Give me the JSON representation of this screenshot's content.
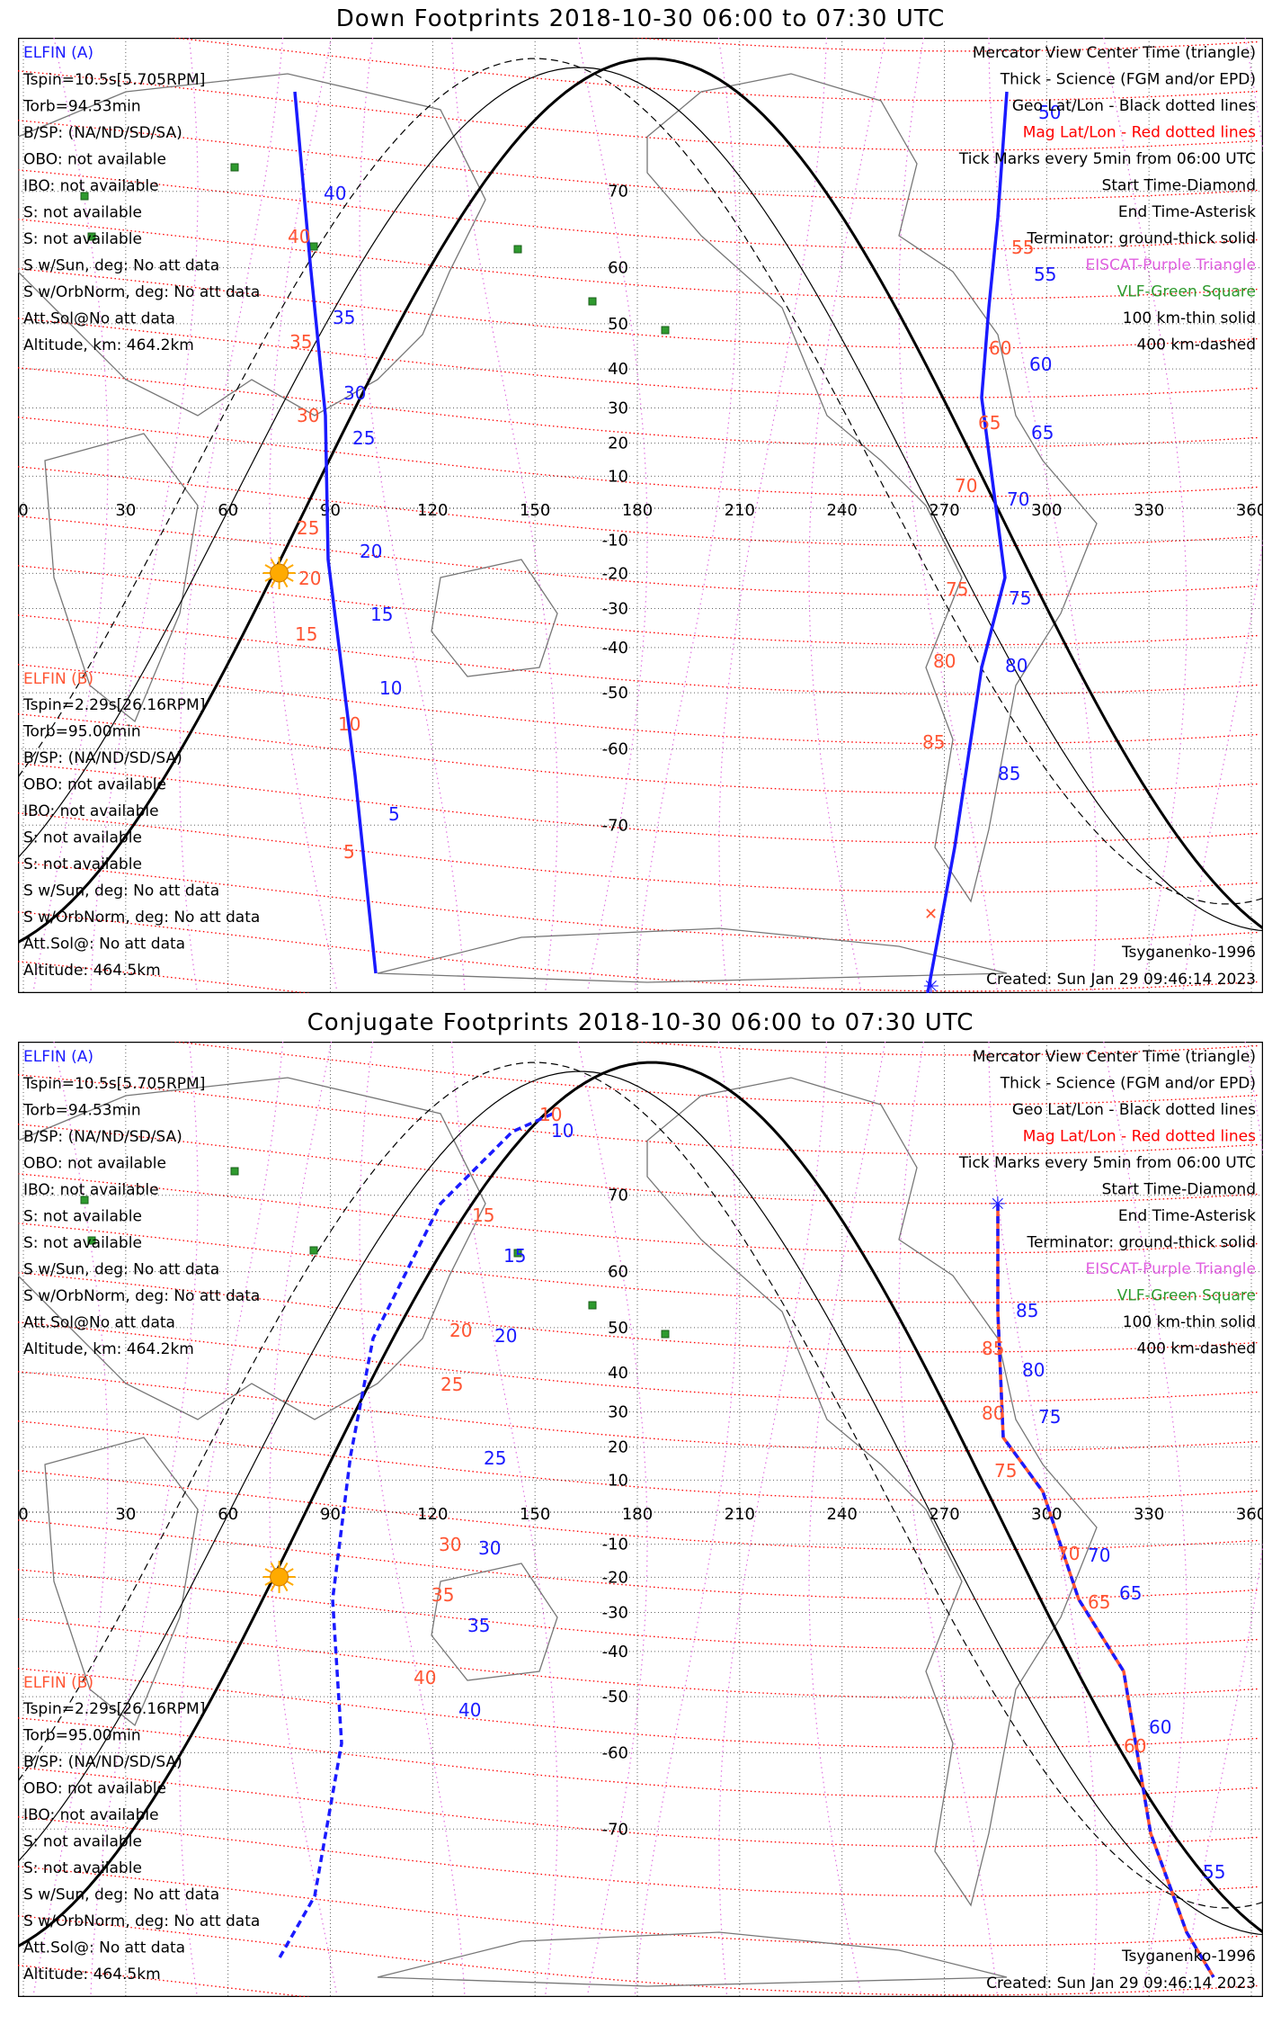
{
  "panels": [
    {
      "id": "down",
      "title": "Down Footprints 2018-10-30 06:00 to 07:30 UTC",
      "elfin_a": {
        "header": "ELFIN (A)",
        "lines": [
          "Tspin=10.5s[5.705RPM]",
          "Torb=94.53min",
          "B/SP: (NA/ND/SD/SA)",
          "OBO: not available",
          "IBO: not available",
          "S: not available",
          "S: not available",
          "S w/Sun, deg: No att data",
          "S w/OrbNorm, deg: No att data",
          "Att.Sol@No att data",
          "Altitude, km: 464.2km"
        ]
      },
      "elfin_b": {
        "header": "ELFIN (B)",
        "lines": [
          "Tspin=2.29s[26.16RPM]",
          "Torb=95.00min",
          "B/SP: (NA/ND/SD/SA)",
          "OBO: not available",
          "IBO: not available",
          "S: not available",
          "S: not available",
          "S w/Sun, deg: No att data",
          "S w/OrbNorm, deg: No att data",
          "Att.Sol@: No att data",
          "Altitude: 464.5km"
        ]
      },
      "legend": [
        {
          "text": "Mercator View Center Time (triangle)",
          "color": "#000000"
        },
        {
          "text": "Thick - Science (FGM and/or EPD)",
          "color": "#000000"
        },
        {
          "text": "Geo Lat/Lon - Black dotted lines",
          "color": "#000000"
        },
        {
          "text": "Mag Lat/Lon - Red dotted lines",
          "color": "#ff0000"
        },
        {
          "text": "Tick Marks every 5min from 06:00 UTC",
          "color": "#000000"
        },
        {
          "text": "Start Time-Diamond",
          "color": "#000000"
        },
        {
          "text": "End Time-Asterisk",
          "color": "#000000"
        },
        {
          "text": "Terminator: ground-thick solid",
          "color": "#000000"
        },
        {
          "text": "EISCAT-Purple Triangle",
          "color": "#e060e0"
        },
        {
          "text": "VLF-Green Square",
          "color": "#2e9a2e"
        },
        {
          "text": "100 km-thin solid",
          "color": "#000000"
        },
        {
          "text": "400 km-dashed",
          "color": "#000000"
        }
      ],
      "model": "Tsyganenko-1996",
      "created": "Created: Sun Jan 29 09:46:14 2023"
    },
    {
      "id": "conjugate",
      "title": "Conjugate Footprints 2018-10-30 06:00 to 07:30 UTC",
      "elfin_a": {
        "header": "ELFIN (A)",
        "lines": [
          "Tspin=10.5s[5.705RPM]",
          "Torb=94.53min",
          "B/SP: (NA/ND/SD/SA)",
          "OBO: not available",
          "IBO: not available",
          "S: not available",
          "S: not available",
          "S w/Sun, deg: No att data",
          "S w/OrbNorm, deg: No att data",
          "Att.Sol@No att data",
          "Altitude, km: 464.2km"
        ]
      },
      "elfin_b": {
        "header": "ELFIN (B)",
        "lines": [
          "Tspin=2.29s[26.16RPM]",
          "Torb=95.00min",
          "B/SP: (NA/ND/SD/SA)",
          "OBO: not available",
          "IBO: not available",
          "S: not available",
          "S: not available",
          "S w/Sun, deg: No att data",
          "S w/OrbNorm, deg: No att data",
          "Att.Sol@: No att data",
          "Altitude: 464.5km"
        ]
      },
      "legend": [
        {
          "text": "Mercator View Center Time (triangle)",
          "color": "#000000"
        },
        {
          "text": "Thick - Science (FGM and/or EPD)",
          "color": "#000000"
        },
        {
          "text": "Geo Lat/Lon - Black dotted lines",
          "color": "#000000"
        },
        {
          "text": "Mag Lat/Lon - Red dotted lines",
          "color": "#ff0000"
        },
        {
          "text": "Tick Marks every 5min from 06:00 UTC",
          "color": "#000000"
        },
        {
          "text": "Start Time-Diamond",
          "color": "#000000"
        },
        {
          "text": "End Time-Asterisk",
          "color": "#000000"
        },
        {
          "text": "Terminator: ground-thick solid",
          "color": "#000000"
        },
        {
          "text": "EISCAT-Purple Triangle",
          "color": "#e060e0"
        },
        {
          "text": "VLF-Green Square",
          "color": "#2e9a2e"
        },
        {
          "text": "100 km-thin solid",
          "color": "#000000"
        },
        {
          "text": "400 km-dashed",
          "color": "#000000"
        }
      ],
      "model": "Tsyganenko-1996",
      "created": "Created: Sun Jan 29 09:46:14 2023"
    }
  ],
  "axes": {
    "lon_labels": [
      "0",
      "30",
      "60",
      "90",
      "120",
      "150",
      "180",
      "210",
      "240",
      "270",
      "300",
      "330",
      "360"
    ],
    "lat_labels": [
      "70",
      "60",
      "50",
      "40",
      "30",
      "20",
      "10",
      "-10",
      "-20",
      "-30",
      "-40",
      "-50",
      "-60",
      "-70"
    ]
  },
  "colors": {
    "elfin_a": "#1a1aff",
    "elfin_b": "#ff5533",
    "mag_grid": "#ff0000",
    "geo_grid": "#000000",
    "eiscat": "#e060e0",
    "vlf": "#2e9a2e",
    "sun": "#ffaa00"
  },
  "tracks": {
    "down": {
      "a_ticks": [
        "40",
        "35",
        "30",
        "25",
        "20",
        "15",
        "10",
        "5",
        "50",
        "55",
        "60",
        "65",
        "70",
        "75",
        "80",
        "85"
      ],
      "b_ticks": [
        "40",
        "35",
        "30",
        "25",
        "20",
        "15",
        "10",
        "5",
        "55",
        "60",
        "65",
        "70",
        "75",
        "80",
        "85"
      ]
    },
    "conjugate": {
      "a_ticks": [
        "10",
        "15",
        "20",
        "25",
        "30",
        "35",
        "40",
        "85",
        "80",
        "75",
        "70",
        "65",
        "60",
        "55"
      ],
      "b_ticks": [
        "10",
        "15",
        "20",
        "25",
        "30",
        "35",
        "40",
        "85",
        "80",
        "75",
        "70",
        "65",
        "60"
      ]
    }
  }
}
